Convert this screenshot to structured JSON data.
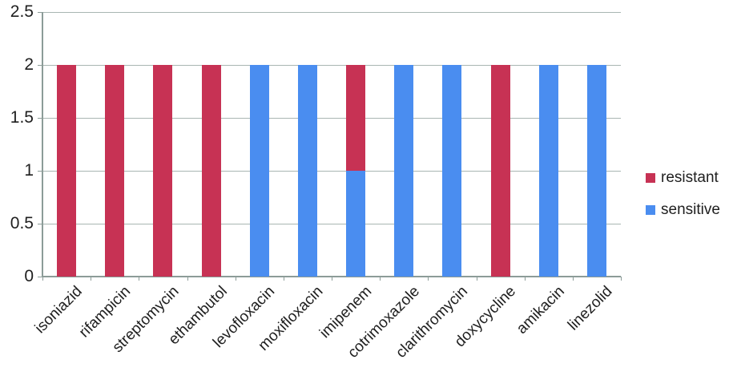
{
  "chart_data": {
    "type": "bar",
    "stacked": true,
    "title": "",
    "xlabel": "",
    "ylabel": "",
    "categories": [
      "isoniazid",
      "rifampicin",
      "streptomycin",
      "ethambutol",
      "levofloxacin",
      "moxifloxacin",
      "imipenem",
      "cotrimoxazole",
      "clarithromycin",
      "doxycycline",
      "amikacin",
      "linezolid"
    ],
    "series": [
      {
        "name": "sensitive",
        "color": "#4a8df0",
        "values": [
          0,
          0,
          0,
          0,
          2,
          2,
          1,
          2,
          2,
          0,
          2,
          2
        ]
      },
      {
        "name": "resistant",
        "color": "#c73254",
        "values": [
          2,
          2,
          2,
          2,
          0,
          0,
          1,
          0,
          0,
          2,
          0,
          0
        ]
      }
    ],
    "ylim": [
      0,
      2.5
    ],
    "yticks": [
      "0",
      "0.5",
      "1",
      "1.5",
      "2",
      "2.5"
    ],
    "grid": true,
    "legend_position": "right"
  },
  "legend": {
    "items": [
      {
        "label": "resistant",
        "color": "#c73254"
      },
      {
        "label": "sensitive",
        "color": "#4a8df0"
      }
    ]
  },
  "colors": {
    "resistant": "#c73254",
    "sensitive": "#4a8df0",
    "gridline": "#a9b6b2",
    "axis": "#8c9c98",
    "text": "#1f1f1f",
    "background": "#ffffff"
  }
}
